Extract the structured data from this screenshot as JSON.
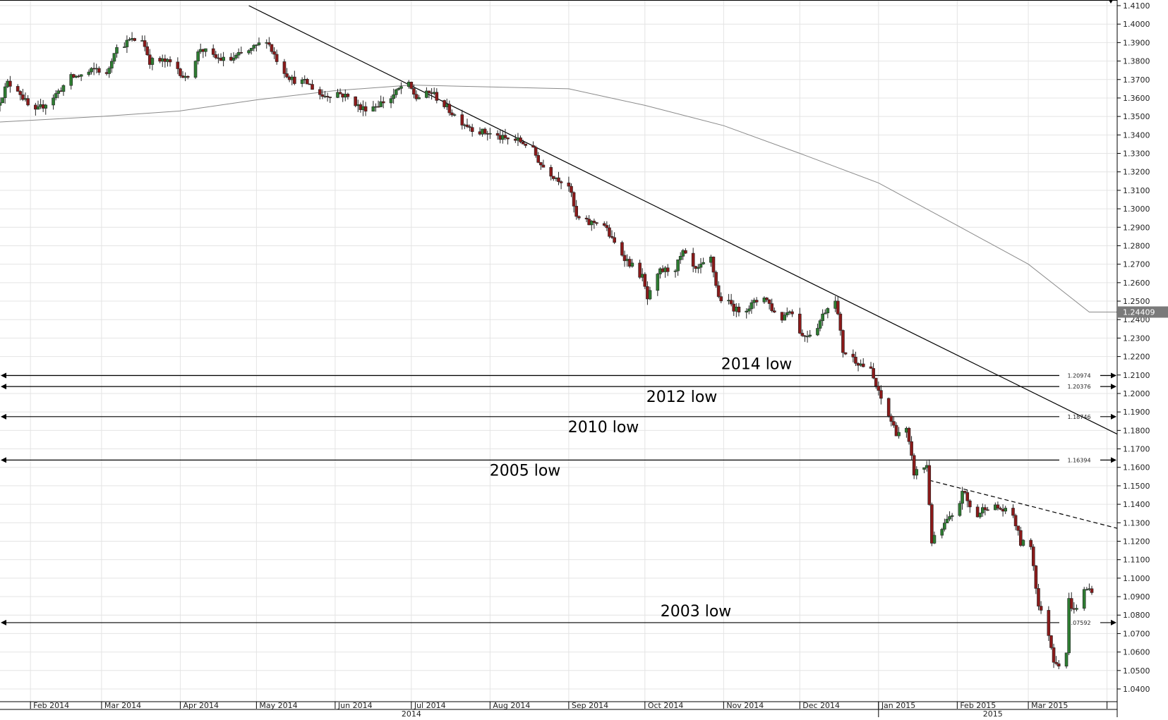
{
  "chart_data": {
    "type": "candlestick",
    "y_axis": {
      "min": 1.04,
      "max": 1.41,
      "step": 0.01,
      "tick_labels": [
        "1.4100",
        "1.4000",
        "1.3900",
        "1.3800",
        "1.3700",
        "1.3600",
        "1.3500",
        "1.3400",
        "1.3300",
        "1.3200",
        "1.3100",
        "1.3000",
        "1.2900",
        "1.2800",
        "1.2700",
        "1.2600",
        "1.2500",
        "1.2400",
        "1.2300",
        "1.2200",
        "1.2100",
        "1.2000",
        "1.1900",
        "1.1800",
        "1.1700",
        "1.1600",
        "1.1500",
        "1.1400",
        "1.1300",
        "1.1200",
        "1.1100",
        "1.1000",
        "1.0900",
        "1.0800",
        "1.0700",
        "1.0600",
        "1.0500",
        "1.0400"
      ]
    },
    "x_axis": {
      "start": "2014-01-20",
      "end": "2015-04-05",
      "months": [
        {
          "label": "Feb 2014",
          "date": "2014-02-01"
        },
        {
          "label": "Mar 2014",
          "date": "2014-03-01"
        },
        {
          "label": "Apr 2014",
          "date": "2014-04-01"
        },
        {
          "label": "May 2014",
          "date": "2014-05-01"
        },
        {
          "label": "Jun 2014",
          "date": "2014-06-01"
        },
        {
          "label": "Jul 2014",
          "date": "2014-07-01"
        },
        {
          "label": "Aug 2014",
          "date": "2014-08-01"
        },
        {
          "label": "Sep 2014",
          "date": "2014-09-01"
        },
        {
          "label": "Oct 2014",
          "date": "2014-10-01"
        },
        {
          "label": "Nov 2014",
          "date": "2014-11-01"
        },
        {
          "label": "Dec 2014",
          "date": "2014-12-01"
        },
        {
          "label": "Jan 2015",
          "date": "2015-01-01"
        },
        {
          "label": "Feb 2015",
          "date": "2015-02-01"
        },
        {
          "label": "Mar 2015",
          "date": "2015-03-01"
        },
        {
          "label": "",
          "date": "2015-04-01"
        }
      ],
      "years": [
        {
          "label": "2014",
          "date": "2014-07-01"
        },
        {
          "label": "2015",
          "date": "2015-02-15"
        }
      ],
      "year_divider": "2015-01-01"
    },
    "price_path": [
      [
        "2014-01-20",
        1.356
      ],
      [
        "2014-01-24",
        1.368
      ],
      [
        "2014-01-28",
        1.365
      ],
      [
        "2014-02-03",
        1.351
      ],
      [
        "2014-02-07",
        1.356
      ],
      [
        "2014-02-12",
        1.362
      ],
      [
        "2014-02-18",
        1.371
      ],
      [
        "2014-02-24",
        1.373
      ],
      [
        "2014-02-28",
        1.376
      ],
      [
        "2014-03-04",
        1.372
      ],
      [
        "2014-03-07",
        1.386
      ],
      [
        "2014-03-13",
        1.391
      ],
      [
        "2014-03-18",
        1.392
      ],
      [
        "2014-03-21",
        1.38
      ],
      [
        "2014-03-26",
        1.38
      ],
      [
        "2014-03-31",
        1.378
      ],
      [
        "2014-04-04",
        1.37
      ],
      [
        "2014-04-10",
        1.387
      ],
      [
        "2014-04-15",
        1.382
      ],
      [
        "2014-04-21",
        1.38
      ],
      [
        "2014-04-25",
        1.383
      ],
      [
        "2014-04-30",
        1.386
      ],
      [
        "2014-05-06",
        1.392
      ],
      [
        "2014-05-08",
        1.386
      ],
      [
        "2014-05-12",
        1.376
      ],
      [
        "2014-05-16",
        1.37
      ],
      [
        "2014-05-22",
        1.368
      ],
      [
        "2014-05-28",
        1.361
      ],
      [
        "2014-06-03",
        1.363
      ],
      [
        "2014-06-09",
        1.359
      ],
      [
        "2014-06-12",
        1.354
      ],
      [
        "2014-06-18",
        1.356
      ],
      [
        "2014-06-24",
        1.36
      ],
      [
        "2014-06-30",
        1.369
      ],
      [
        "2014-07-04",
        1.36
      ],
      [
        "2014-07-10",
        1.363
      ],
      [
        "2014-07-15",
        1.356
      ],
      [
        "2014-07-21",
        1.348
      ],
      [
        "2014-07-28",
        1.342
      ],
      [
        "2014-08-01",
        1.341
      ],
      [
        "2014-08-07",
        1.338
      ],
      [
        "2014-08-13",
        1.337
      ],
      [
        "2014-08-18",
        1.334
      ],
      [
        "2014-08-22",
        1.324
      ],
      [
        "2014-08-27",
        1.318
      ],
      [
        "2014-09-02",
        1.313
      ],
      [
        "2014-09-05",
        1.295
      ],
      [
        "2014-09-10",
        1.292
      ],
      [
        "2014-09-15",
        1.294
      ],
      [
        "2014-09-19",
        1.283
      ],
      [
        "2014-09-25",
        1.272
      ],
      [
        "2014-10-01",
        1.263
      ],
      [
        "2014-10-03",
        1.251
      ],
      [
        "2014-10-08",
        1.266
      ],
      [
        "2014-10-14",
        1.268
      ],
      [
        "2014-10-17",
        1.276
      ],
      [
        "2014-10-22",
        1.266
      ],
      [
        "2014-10-28",
        1.273
      ],
      [
        "2014-10-31",
        1.252
      ],
      [
        "2014-11-05",
        1.248
      ],
      [
        "2014-11-07",
        1.245
      ],
      [
        "2014-11-12",
        1.247
      ],
      [
        "2014-11-18",
        1.253
      ],
      [
        "2014-11-24",
        1.239
      ],
      [
        "2014-11-28",
        1.246
      ],
      [
        "2014-12-03",
        1.231
      ],
      [
        "2014-12-08",
        1.234
      ],
      [
        "2014-12-12",
        1.245
      ],
      [
        "2014-12-16",
        1.252
      ],
      [
        "2014-12-19",
        1.223
      ],
      [
        "2014-12-24",
        1.218
      ],
      [
        "2014-12-30",
        1.212
      ],
      [
        "2015-01-02",
        1.2
      ],
      [
        "2015-01-06",
        1.188
      ],
      [
        "2015-01-09",
        1.179
      ],
      [
        "2015-01-13",
        1.18
      ],
      [
        "2015-01-16",
        1.157
      ],
      [
        "2015-01-21",
        1.161
      ],
      [
        "2015-01-23",
        1.12
      ],
      [
        "2015-01-26",
        1.124
      ],
      [
        "2015-01-29",
        1.131
      ],
      [
        "2015-02-02",
        1.134
      ],
      [
        "2015-02-04",
        1.148
      ],
      [
        "2015-02-09",
        1.132
      ],
      [
        "2015-02-13",
        1.139
      ],
      [
        "2015-02-18",
        1.138
      ],
      [
        "2015-02-24",
        1.134
      ],
      [
        "2015-02-27",
        1.119
      ],
      [
        "2015-03-03",
        1.118
      ],
      [
        "2015-03-06",
        1.085
      ],
      [
        "2015-03-10",
        1.07
      ],
      [
        "2015-03-12",
        1.056
      ],
      [
        "2015-03-16",
        1.052
      ],
      [
        "2015-03-17",
        1.06
      ],
      [
        "2015-03-18",
        1.088
      ],
      [
        "2015-03-20",
        1.082
      ],
      [
        "2015-03-24",
        1.093
      ],
      [
        "2015-03-26",
        1.094
      ]
    ],
    "moving_average": [
      [
        "2014-01-20",
        1.347
      ],
      [
        "2014-03-01",
        1.35
      ],
      [
        "2014-04-01",
        1.353
      ],
      [
        "2014-05-01",
        1.359
      ],
      [
        "2014-06-01",
        1.364
      ],
      [
        "2014-07-01",
        1.367
      ],
      [
        "2014-08-01",
        1.366
      ],
      [
        "2014-09-01",
        1.365
      ],
      [
        "2014-10-01",
        1.356
      ],
      [
        "2014-11-01",
        1.345
      ],
      [
        "2014-12-01",
        1.33
      ],
      [
        "2015-01-01",
        1.314
      ],
      [
        "2015-02-01",
        1.291
      ],
      [
        "2015-03-01",
        1.27
      ],
      [
        "2015-03-25",
        1.2441
      ],
      [
        "2015-04-05",
        1.2441
      ]
    ],
    "trendlines": [
      {
        "style": "solid",
        "from": [
          "2014-04-28",
          1.41
        ],
        "to": [
          "2015-04-05",
          1.178
        ]
      },
      {
        "style": "dashed",
        "from": [
          "2015-01-21",
          1.153
        ],
        "to": [
          "2015-04-05",
          1.127
        ]
      }
    ],
    "levels": [
      {
        "value": 1.20974,
        "value_label": "1.20974",
        "annotation": "2014 low",
        "annotation_position": "above"
      },
      {
        "value": 1.20376,
        "value_label": "1.20376",
        "annotation": "2012 low",
        "annotation_position": "below"
      },
      {
        "value": 1.18746,
        "value_label": "1.18746",
        "annotation": "2010 low",
        "annotation_position": "below"
      },
      {
        "value": 1.16394,
        "value_label": "1.16394",
        "annotation": "2005 low",
        "annotation_position": "below"
      },
      {
        "value": 1.07592,
        "value_label": "1.07592",
        "annotation": "2003 low",
        "annotation_position": "above"
      }
    ],
    "current_price_tag": {
      "value": 1.24409,
      "label": "1.24409"
    },
    "colors": {
      "up": "#2e7d32",
      "down": "#8b1a1a",
      "wick": "#222222",
      "grid": "#e4e4e4",
      "moving_average": "#8a8a8a",
      "line": "#000000",
      "price_tag_bg": "#7a7a7a"
    }
  }
}
